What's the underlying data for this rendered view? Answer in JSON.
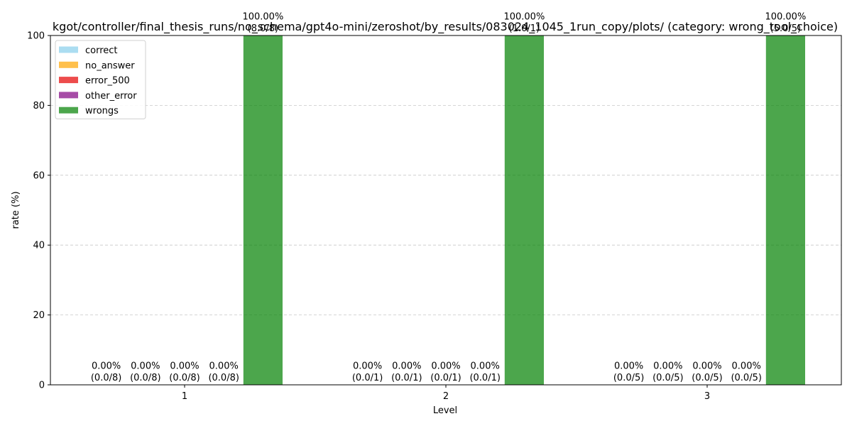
{
  "chart_data": {
    "type": "bar",
    "title": "kgot/controller/final_thesis_runs/no_schema/gpt4o-mini/zeroshot/by_results/083024_1045_1run_copy/plots/ (category: wrong_tool_choice)",
    "xlabel": "Level",
    "ylabel": "rate (%)",
    "ylim": [
      0,
      100
    ],
    "yticks": [
      0,
      20,
      40,
      60,
      80,
      100
    ],
    "grid": "y-dashed",
    "legend_position": "top-left",
    "categories": [
      "1",
      "2",
      "3"
    ],
    "series": [
      {
        "name": "correct",
        "color": "#87ceeb",
        "values": [
          0,
          0,
          0
        ],
        "labels": [
          "0.00%\n(0.0/8)",
          "0.00%\n(0.0/1)",
          "0.00%\n(0.0/5)"
        ]
      },
      {
        "name": "no_answer",
        "color": "#ffa500",
        "values": [
          0,
          0,
          0
        ],
        "labels": [
          "0.00%\n(0.0/8)",
          "0.00%\n(0.0/1)",
          "0.00%\n(0.0/5)"
        ]
      },
      {
        "name": "error_500",
        "color": "#e60000",
        "values": [
          0,
          0,
          0
        ],
        "labels": [
          "0.00%\n(0.0/8)",
          "0.00%\n(0.0/1)",
          "0.00%\n(0.0/5)"
        ]
      },
      {
        "name": "other_error",
        "color": "#800080",
        "values": [
          0,
          0,
          0
        ],
        "labels": [
          "0.00%\n(0.0/8)",
          "0.00%\n(0.0/1)",
          "0.00%\n(0.0/5)"
        ]
      },
      {
        "name": "wrongs",
        "color": "#008000",
        "values": [
          100,
          100,
          100
        ],
        "labels": [
          "100.00%\n(8.0/8)",
          "100.00%\n(1.0/1)",
          "100.00%\n(5.0/5)"
        ]
      }
    ]
  }
}
